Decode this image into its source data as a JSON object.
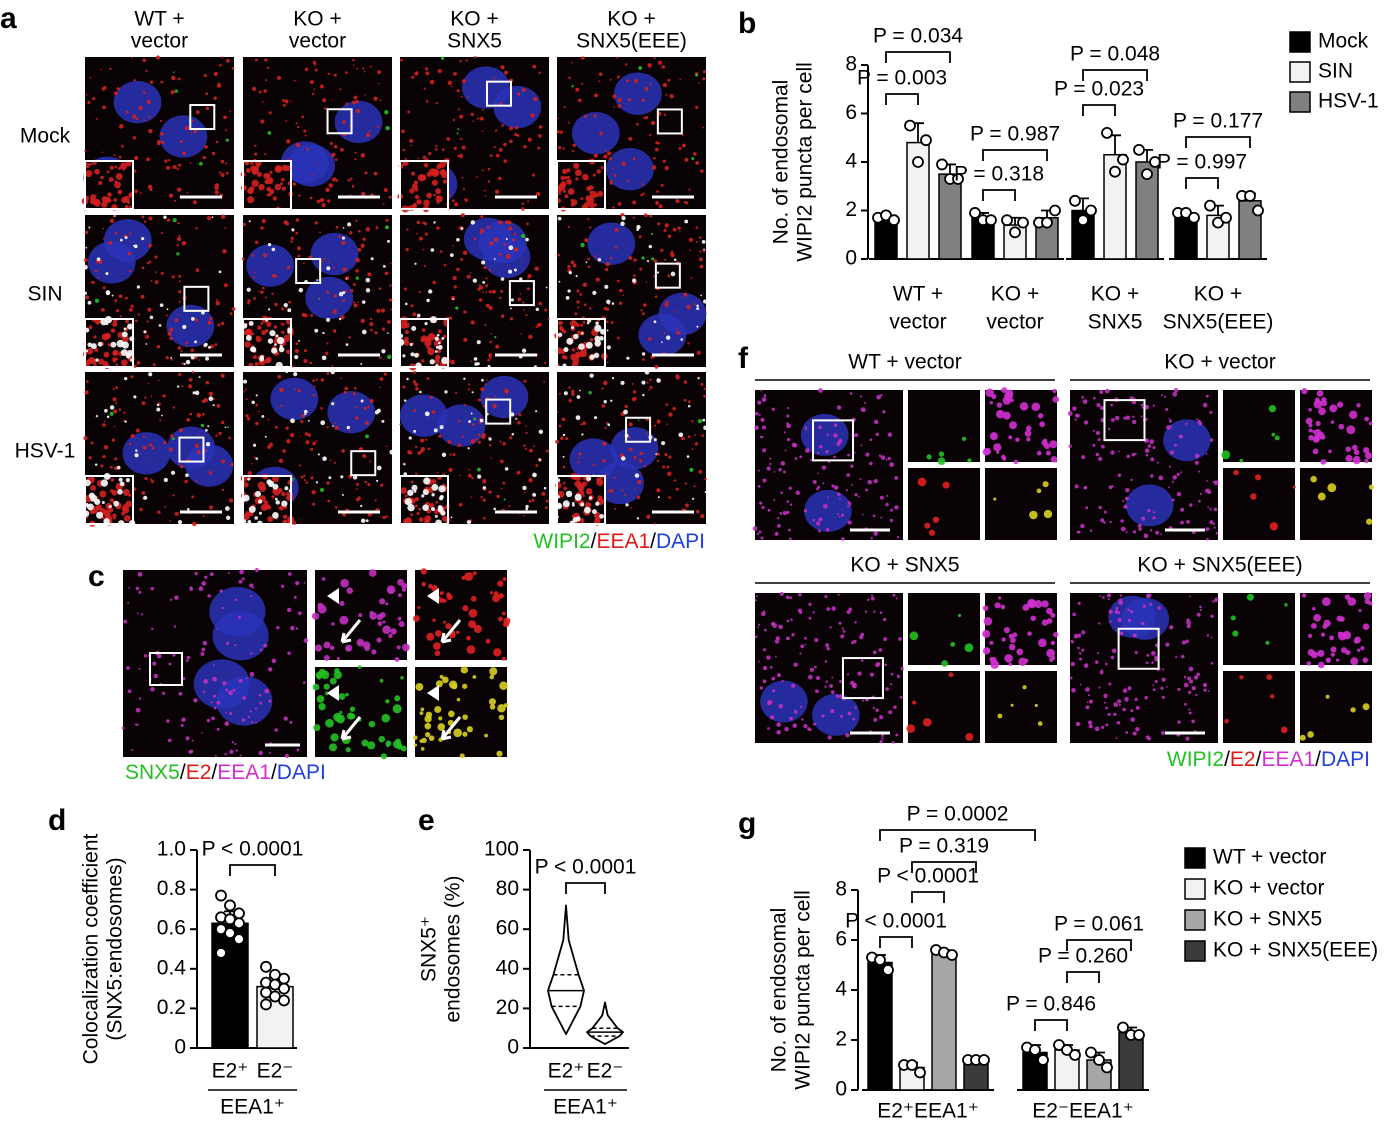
{
  "panel_labels": [
    "a",
    "b",
    "c",
    "d",
    "e",
    "f",
    "g"
  ],
  "panel_a": {
    "columns": [
      [
        "WT +",
        "vector"
      ],
      [
        "KO +",
        "vector"
      ],
      [
        "KO +",
        "SNX5"
      ],
      [
        "KO +",
        "SNX5(EEE)"
      ]
    ],
    "rows": [
      "Mock",
      "SIN",
      "HSV-1"
    ],
    "legend": [
      {
        "text": "WIPI2",
        "color": "#22c022"
      },
      {
        "text": "/",
        "color": "#000000"
      },
      {
        "text": "EEA1",
        "color": "#e01818"
      },
      {
        "text": "/",
        "color": "#000000"
      },
      {
        "text": "DAPI",
        "color": "#1f3fe0"
      }
    ]
  },
  "panel_c": {
    "legend": [
      {
        "text": "SNX5",
        "color": "#22c022"
      },
      {
        "text": "/",
        "color": "#000000"
      },
      {
        "text": "E2",
        "color": "#e01818"
      },
      {
        "text": "/",
        "color": "#000000"
      },
      {
        "text": "EEA1",
        "color": "#d030d0"
      },
      {
        "text": "/",
        "color": "#000000"
      },
      {
        "text": "DAPI",
        "color": "#1f3fe0"
      }
    ]
  },
  "panel_f": {
    "blocks": [
      "WT + vector",
      "KO + vector",
      "KO + SNX5",
      "KO + SNX5(EEE)"
    ],
    "legend": [
      {
        "text": "WIPI2",
        "color": "#22c022"
      },
      {
        "text": "/",
        "color": "#000000"
      },
      {
        "text": "E2",
        "color": "#e01818"
      },
      {
        "text": "/",
        "color": "#000000"
      },
      {
        "text": "EEA1",
        "color": "#d030d0"
      },
      {
        "text": "/",
        "color": "#000000"
      },
      {
        "text": "DAPI",
        "color": "#1f3fe0"
      }
    ]
  },
  "chart_data": [
    {
      "type": "bar",
      "y_label": [
        "No. of endosomal",
        "WIPI2 puncta per cell"
      ],
      "categories": [
        [
          "WT +",
          "vector"
        ],
        [
          "KO +",
          "vector"
        ],
        [
          "KO +",
          "SNX5"
        ],
        [
          "KO +",
          "SNX5(EEE)"
        ]
      ],
      "series": [
        {
          "name": "Mock",
          "color": "#000000",
          "values": [
            1.7,
            1.7,
            2.0,
            1.8
          ],
          "errors": [
            0.1,
            0.2,
            0.5,
            0.1
          ],
          "points": [
            [
              1.7,
              1.8,
              1.6
            ],
            [
              1.9,
              1.6,
              1.6
            ],
            [
              2.4,
              1.6,
              2.0
            ],
            [
              1.9,
              1.9,
              1.7
            ]
          ]
        },
        {
          "name": "SIN",
          "color": "#f2f2f2",
          "values": [
            4.8,
            1.4,
            4.3,
            1.8
          ],
          "errors": [
            0.8,
            0.3,
            0.8,
            0.4
          ],
          "points": [
            [
              5.5,
              4.0,
              4.9
            ],
            [
              1.6,
              1.1,
              1.5
            ],
            [
              5.2,
              3.6,
              4.1
            ],
            [
              2.2,
              1.5,
              1.7
            ]
          ]
        },
        {
          "name": "HSV-1",
          "color": "#808080",
          "values": [
            3.5,
            1.7,
            4.0,
            2.4
          ],
          "errors": [
            0.4,
            0.3,
            0.5,
            0.3
          ],
          "points": [
            [
              3.9,
              3.3,
              3.3
            ],
            [
              1.5,
              1.5,
              2.0
            ],
            [
              4.5,
              3.5,
              4.0
            ],
            [
              2.6,
              2.6,
              2.0
            ]
          ]
        }
      ],
      "ylim": [
        0,
        8
      ],
      "yticks": [
        0,
        2,
        4,
        6,
        8
      ],
      "annotations": [
        "P = 0.034",
        "P = 0.003",
        "P = 0.987",
        "P = 0.318",
        "P = 0.048",
        "P = 0.023",
        "P = 0.177",
        "P = 0.997"
      ]
    },
    {
      "type": "bar",
      "y_label": [
        "Colocalization coefficient",
        "(SNX5:endosomes)"
      ],
      "categories": [
        "E2⁺",
        "E2⁻"
      ],
      "group_label": "EEA1⁺",
      "colors": [
        "#000000",
        "#f2f2f2"
      ],
      "values": [
        0.63,
        0.31
      ],
      "errors": [
        0.06,
        0.05
      ],
      "points": [
        [
          0.77,
          0.72,
          0.68,
          0.66,
          0.65,
          0.63,
          0.6,
          0.58,
          0.55,
          0.48
        ],
        [
          0.41,
          0.37,
          0.35,
          0.33,
          0.32,
          0.3,
          0.28,
          0.26,
          0.24,
          0.22
        ]
      ],
      "ylim": [
        0,
        1
      ],
      "yticks": [
        0,
        0.2,
        0.4,
        0.6,
        0.8,
        {
          "value": 1,
          "label": "1.0"
        }
      ],
      "annotations": [
        "P < 0.0001"
      ]
    },
    {
      "type": "violin",
      "y_label": [
        "SNX5⁺",
        "endosomes (%)"
      ],
      "categories": [
        "E2⁺",
        "E2⁻"
      ],
      "group_label": "EEA1⁺",
      "min": [
        7,
        2
      ],
      "q1": [
        21,
        6
      ],
      "median": [
        29,
        8
      ],
      "q3": [
        37,
        10
      ],
      "max": [
        72,
        23
      ],
      "ylim": [
        0,
        100
      ],
      "yticks": [
        0,
        20,
        40,
        60,
        80,
        100
      ],
      "annotations": [
        "P < 0.0001"
      ]
    },
    {
      "type": "bar",
      "y_label": [
        "No. of endosomal",
        "WIPI2 puncta per cell"
      ],
      "categories": [
        "E2⁺EEA1⁺",
        "E2⁻EEA1⁺"
      ],
      "series": [
        {
          "name": "WT + vector",
          "color": "#000000",
          "values": [
            5.1,
            1.5
          ],
          "errors": [
            0.3,
            0.3
          ],
          "points": [
            [
              5.3,
              5.2,
              4.8
            ],
            [
              1.7,
              1.6,
              1.2
            ]
          ]
        },
        {
          "name": "KO + vector",
          "color": "#f2f2f2",
          "values": [
            0.9,
            1.6
          ],
          "errors": [
            0.2,
            0.2
          ],
          "points": [
            [
              1.0,
              1.0,
              0.7
            ],
            [
              1.8,
              1.6,
              1.4
            ]
          ]
        },
        {
          "name": "KO + SNX5",
          "color": "#a6a6a6",
          "values": [
            5.5,
            1.2
          ],
          "errors": [
            0.1,
            0.3
          ],
          "points": [
            [
              5.6,
              5.5,
              5.4
            ],
            [
              1.5,
              1.2,
              0.9
            ]
          ]
        },
        {
          "name": "KO + SNX5(EEE)",
          "color": "#3a3a3a",
          "values": [
            1.2,
            2.3
          ],
          "errors": [
            0.05,
            0.2
          ],
          "points": [
            [
              1.2,
              1.2,
              1.2
            ],
            [
              2.5,
              2.2,
              2.2
            ]
          ]
        }
      ],
      "ylim": [
        0,
        8
      ],
      "yticks": [
        0,
        2,
        4,
        6,
        8
      ],
      "annotations": [
        "P = 0.0002",
        "P = 0.319",
        "P < 0.0001",
        "P < 0.0001",
        "P = 0.061",
        "P = 0.260",
        "P = 0.846"
      ]
    }
  ]
}
